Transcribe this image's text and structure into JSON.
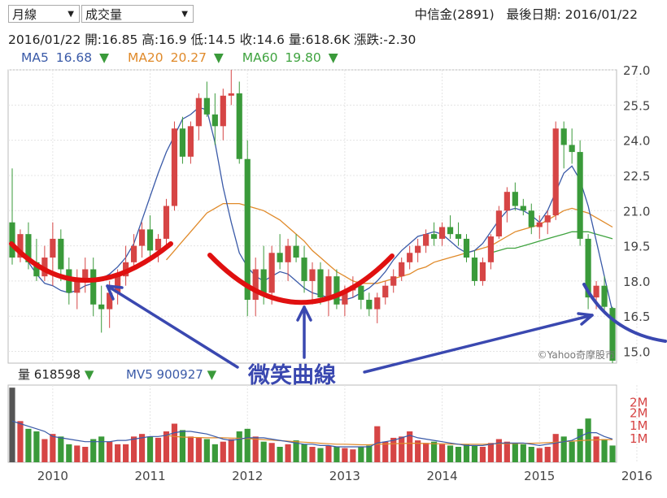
{
  "controls": {
    "period": "月線",
    "indicator": "成交量"
  },
  "stock": {
    "name": "中信金(2891)",
    "last_date_label": "最後日期: 2016/01/22"
  },
  "quote": {
    "date": "2016/01/22",
    "open": "開:16.85",
    "high": "高:16.9",
    "low": "低:14.5",
    "close": "收:14.6",
    "volume": "量:618.6K",
    "change": "漲跌:-2.30"
  },
  "ma_legend": [
    {
      "label": "MA5",
      "value": "16.68",
      "arrow": "▼",
      "color": "#3a5aa8"
    },
    {
      "label": "MA20",
      "value": "20.27",
      "arrow": "▼",
      "color": "#e08a2a"
    },
    {
      "label": "MA60",
      "value": "19.80",
      "arrow": "▼",
      "color": "#3fa33f"
    }
  ],
  "vol_legend": [
    {
      "label": "量",
      "value": "618598",
      "arrow": "▼",
      "color": "#222222"
    },
    {
      "label": "MV5",
      "value": "900927",
      "arrow": "▼",
      "color": "#3a5aa8"
    }
  ],
  "annotation": {
    "text": "微笑曲線",
    "color": "#3a48b0",
    "curve_color": "#e01010"
  },
  "watermark": "©Yahoo奇摩股市",
  "chart_data": {
    "type": "candlestick",
    "price_axis": {
      "ticks": [
        "27.0",
        "25.5",
        "24.0",
        "22.5",
        "21.0",
        "19.5",
        "18.0",
        "16.5",
        "15.0"
      ],
      "ylim": [
        14.5,
        27.0
      ]
    },
    "volume_axis": {
      "ticks": [
        "2M",
        "2M",
        "1M",
        "1M"
      ]
    },
    "x_axis": {
      "ticks": [
        "2010",
        "2011",
        "2012",
        "2013",
        "2014",
        "2015",
        "2016"
      ]
    },
    "up_color": "#d64545",
    "down_color": "#3a9a3a",
    "candles": [
      [
        20.5,
        22.8,
        18.7,
        19.0
      ],
      [
        19.0,
        20.2,
        18.8,
        20.0
      ],
      [
        20.0,
        20.5,
        18.5,
        18.8
      ],
      [
        18.8,
        19.8,
        18.0,
        18.2
      ],
      [
        18.2,
        19.5,
        18.0,
        19.0
      ],
      [
        19.0,
        20.5,
        17.8,
        19.8
      ],
      [
        19.8,
        20.2,
        18.0,
        18.5
      ],
      [
        18.5,
        19.0,
        17.0,
        17.5
      ],
      [
        17.5,
        18.5,
        16.8,
        18.0
      ],
      [
        18.0,
        19.0,
        17.5,
        18.5
      ],
      [
        18.5,
        19.0,
        16.5,
        17.0
      ],
      [
        17.0,
        17.8,
        15.8,
        16.8
      ],
      [
        16.8,
        18.0,
        16.0,
        17.5
      ],
      [
        17.5,
        18.5,
        17.0,
        18.2
      ],
      [
        18.2,
        19.5,
        17.8,
        18.8
      ],
      [
        18.8,
        20.0,
        18.5,
        19.5
      ],
      [
        19.5,
        20.5,
        19.0,
        20.2
      ],
      [
        20.2,
        20.8,
        19.0,
        19.3
      ],
      [
        19.3,
        20.0,
        18.8,
        19.8
      ],
      [
        19.8,
        21.5,
        19.5,
        21.2
      ],
      [
        21.2,
        24.8,
        21.0,
        24.5
      ],
      [
        24.5,
        25.0,
        23.0,
        23.3
      ],
      [
        23.3,
        24.8,
        23.0,
        24.6
      ],
      [
        24.6,
        26.0,
        24.0,
        25.8
      ],
      [
        25.8,
        26.5,
        25.0,
        25.1
      ],
      [
        25.1,
        26.0,
        23.8,
        24.6
      ],
      [
        24.6,
        26.2,
        24.0,
        25.9
      ],
      [
        25.9,
        27.0,
        25.5,
        26.0
      ],
      [
        26.0,
        26.5,
        23.0,
        23.2
      ],
      [
        23.2,
        24.0,
        16.5,
        17.2
      ],
      [
        17.2,
        19.0,
        16.5,
        18.5
      ],
      [
        18.5,
        19.5,
        17.0,
        17.5
      ],
      [
        17.5,
        19.5,
        17.0,
        19.2
      ],
      [
        19.2,
        20.0,
        18.5,
        18.8
      ],
      [
        18.8,
        19.8,
        18.0,
        19.5
      ],
      [
        19.5,
        20.0,
        18.8,
        19.0
      ],
      [
        19.0,
        19.5,
        17.5,
        18.0
      ],
      [
        18.0,
        18.8,
        17.0,
        18.5
      ],
      [
        18.5,
        18.8,
        17.0,
        17.3
      ],
      [
        17.3,
        18.5,
        16.5,
        18.2
      ],
      [
        18.2,
        18.5,
        16.8,
        17.0
      ],
      [
        17.0,
        17.8,
        16.5,
        17.6
      ],
      [
        17.6,
        18.2,
        17.3,
        17.8
      ],
      [
        17.8,
        18.0,
        16.8,
        17.2
      ],
      [
        17.2,
        17.5,
        16.5,
        16.8
      ],
      [
        16.8,
        17.5,
        16.2,
        17.3
      ],
      [
        17.3,
        18.0,
        17.0,
        17.8
      ],
      [
        17.8,
        18.5,
        17.5,
        18.2
      ],
      [
        18.2,
        19.0,
        18.0,
        18.8
      ],
      [
        18.8,
        19.5,
        18.5,
        19.2
      ],
      [
        19.2,
        19.8,
        18.8,
        19.5
      ],
      [
        19.5,
        20.2,
        19.2,
        20.0
      ],
      [
        20.0,
        20.5,
        19.5,
        19.8
      ],
      [
        19.8,
        20.5,
        19.5,
        20.3
      ],
      [
        20.3,
        20.8,
        19.8,
        20.0
      ],
      [
        20.0,
        20.5,
        19.5,
        19.8
      ],
      [
        19.8,
        20.0,
        18.8,
        19.0
      ],
      [
        19.0,
        19.3,
        17.8,
        18.0
      ],
      [
        18.0,
        19.0,
        17.8,
        18.8
      ],
      [
        18.8,
        20.0,
        18.5,
        19.9
      ],
      [
        19.9,
        21.2,
        19.8,
        21.0
      ],
      [
        21.0,
        22.0,
        20.5,
        21.8
      ],
      [
        21.8,
        22.2,
        21.0,
        21.2
      ],
      [
        21.2,
        21.5,
        20.8,
        21.0
      ],
      [
        21.0,
        21.3,
        20.0,
        20.3
      ],
      [
        20.3,
        20.8,
        19.8,
        20.5
      ],
      [
        20.5,
        21.0,
        20.0,
        20.8
      ],
      [
        20.8,
        24.8,
        20.6,
        24.5
      ],
      [
        24.5,
        24.8,
        22.8,
        23.8
      ],
      [
        23.8,
        24.5,
        23.0,
        23.5
      ],
      [
        23.5,
        24.0,
        19.5,
        19.8
      ],
      [
        19.8,
        20.0,
        16.8,
        17.3
      ],
      [
        17.3,
        18.0,
        16.8,
        17.8
      ],
      [
        17.8,
        18.2,
        16.6,
        16.9
      ],
      [
        16.85,
        16.9,
        14.5,
        14.6
      ]
    ],
    "volumes_millions": [
      2.9,
      1.6,
      1.3,
      1.2,
      0.9,
      1.1,
      1.0,
      0.7,
      0.65,
      0.6,
      0.9,
      1.0,
      0.8,
      0.7,
      0.7,
      1.0,
      1.1,
      1.0,
      0.95,
      1.2,
      1.5,
      1.25,
      1.0,
      0.95,
      0.9,
      0.7,
      0.8,
      0.9,
      1.2,
      1.3,
      1.0,
      0.8,
      0.75,
      0.6,
      0.7,
      0.85,
      0.7,
      0.6,
      0.55,
      0.65,
      0.6,
      0.55,
      0.5,
      0.6,
      0.65,
      1.4,
      0.8,
      0.95,
      1.0,
      1.2,
      0.85,
      0.75,
      0.8,
      0.7,
      0.65,
      0.6,
      0.7,
      0.65,
      0.6,
      0.75,
      0.9,
      0.8,
      0.75,
      0.7,
      0.6,
      0.55,
      0.6,
      1.1,
      1.0,
      0.8,
      1.3,
      1.7,
      1.0,
      0.9,
      0.65
    ],
    "ma5": [
      19.6,
      19.2,
      18.8,
      18.3,
      17.9,
      17.8,
      17.6,
      17.5,
      17.6,
      17.8,
      17.9,
      18.1,
      18.3,
      18.6,
      19.0,
      19.6,
      20.6,
      21.6,
      22.6,
      23.5,
      24.2,
      24.9,
      25.1,
      25.4,
      25.3,
      23.9,
      22.0,
      20.5,
      19.2,
      18.6,
      18.2,
      18.0,
      18.2,
      18.4,
      18.3,
      18.0,
      17.7,
      17.5,
      17.4,
      17.3,
      17.2,
      17.2,
      17.3,
      17.5,
      17.7,
      18.0,
      18.4,
      18.9,
      19.3,
      19.6,
      19.9,
      20.0,
      20.1,
      20.0,
      19.7,
      19.4,
      19.2,
      19.3,
      19.6,
      20.1,
      20.6,
      21.0,
      21.1,
      21.0,
      20.8,
      20.5,
      21.0,
      21.8,
      22.6,
      22.9,
      22.3,
      21.2,
      19.7,
      18.2,
      16.7
    ],
    "ma20": [
      null,
      null,
      null,
      null,
      null,
      null,
      null,
      null,
      null,
      null,
      null,
      null,
      null,
      null,
      null,
      null,
      null,
      null,
      null,
      18.9,
      19.3,
      19.7,
      20.1,
      20.5,
      20.9,
      21.1,
      21.3,
      21.3,
      21.3,
      21.2,
      21.1,
      21.0,
      20.8,
      20.6,
      20.3,
      20.0,
      19.7,
      19.3,
      19.0,
      18.7,
      18.4,
      18.2,
      18.0,
      17.9,
      17.9,
      17.9,
      18.0,
      18.1,
      18.2,
      18.3,
      18.5,
      18.6,
      18.8,
      18.9,
      19.0,
      19.1,
      19.2,
      19.3,
      19.4,
      19.5,
      19.7,
      19.9,
      20.1,
      20.2,
      20.3,
      20.4,
      20.6,
      20.8,
      21.0,
      21.1,
      21.0,
      20.9,
      20.7,
      20.5,
      20.3
    ],
    "ma60": [
      null,
      null,
      null,
      null,
      null,
      null,
      null,
      null,
      null,
      null,
      null,
      null,
      null,
      null,
      null,
      null,
      null,
      null,
      null,
      null,
      null,
      null,
      null,
      null,
      null,
      null,
      null,
      null,
      null,
      null,
      null,
      null,
      null,
      null,
      null,
      null,
      null,
      null,
      null,
      null,
      null,
      null,
      null,
      null,
      null,
      null,
      null,
      null,
      null,
      null,
      null,
      null,
      null,
      null,
      null,
      null,
      null,
      null,
      null,
      19.2,
      19.3,
      19.4,
      19.4,
      19.5,
      19.6,
      19.7,
      19.8,
      19.9,
      20.0,
      20.1,
      20.1,
      20.1,
      20.0,
      19.9,
      19.8
    ],
    "mv5": [
      1.6,
      1.5,
      1.4,
      1.3,
      1.2,
      1.0,
      0.95,
      0.9,
      0.85,
      0.8,
      0.8,
      0.8,
      0.8,
      0.85,
      0.85,
      0.9,
      0.95,
      1.0,
      1.0,
      1.05,
      1.15,
      1.2,
      1.2,
      1.15,
      1.1,
      1.0,
      0.9,
      0.85,
      0.9,
      0.95,
      0.95,
      0.95,
      0.9,
      0.85,
      0.8,
      0.75,
      0.7,
      0.7,
      0.65,
      0.65,
      0.6,
      0.6,
      0.6,
      0.6,
      0.6,
      0.75,
      0.8,
      0.85,
      0.95,
      1.05,
      0.95,
      0.9,
      0.85,
      0.8,
      0.75,
      0.7,
      0.65,
      0.65,
      0.65,
      0.7,
      0.75,
      0.75,
      0.75,
      0.75,
      0.7,
      0.65,
      0.7,
      0.75,
      0.8,
      0.85,
      1.0,
      1.15,
      1.15,
      1.0,
      0.9
    ],
    "mv20": [
      null,
      null,
      null,
      null,
      null,
      null,
      null,
      null,
      null,
      null,
      null,
      null,
      null,
      null,
      null,
      null,
      null,
      null,
      null,
      1.05,
      1.0,
      0.98,
      0.97,
      0.96,
      0.95,
      0.95,
      0.95,
      0.94,
      0.93,
      0.92,
      0.9,
      0.88,
      0.86,
      0.84,
      0.82,
      0.8,
      0.78,
      0.76,
      0.74,
      0.72,
      0.7,
      0.7,
      0.69,
      0.68,
      0.68,
      0.7,
      0.71,
      0.72,
      0.73,
      0.74,
      0.74,
      0.73,
      0.72,
      0.72,
      0.71,
      0.7,
      0.7,
      0.7,
      0.7,
      0.71,
      0.72,
      0.73,
      0.73,
      0.74,
      0.74,
      0.75,
      0.76,
      0.78,
      0.8,
      0.82,
      0.84,
      0.86,
      0.87,
      0.88,
      0.88
    ]
  }
}
